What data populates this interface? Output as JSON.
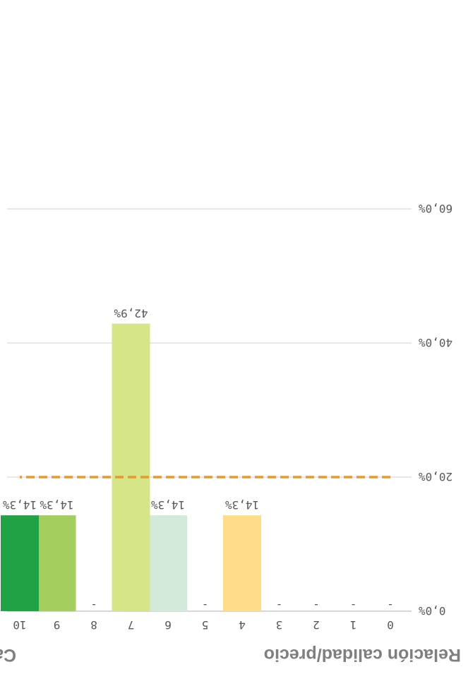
{
  "chart_data": {
    "type": "bar",
    "title": "Calificaciones en tiem",
    "xlabel": "Relación calidad/precio",
    "ylabel": "",
    "categories": [
      "0",
      "1",
      "2",
      "3",
      "4",
      "5",
      "6",
      "7",
      "8",
      "9",
      "10"
    ],
    "values": [
      0,
      0,
      0,
      0,
      14.3,
      0,
      14.3,
      42.9,
      0,
      14.3,
      14.3
    ],
    "data_labels": [
      "-",
      "-",
      "-",
      "-",
      "14,3%",
      "-",
      "14,3%",
      "42,9%",
      "-",
      "14,3%",
      "14,3%"
    ],
    "colors": [
      "#f0a830",
      "#f0a830",
      "#f0a830",
      "#f0a830",
      "#ffdd88",
      "#f0a830",
      "#d3eadb",
      "#d7e589",
      "#f0a830",
      "#a4cf5f",
      "#21a245"
    ],
    "ylim": [
      0,
      60
    ],
    "yticks": [
      0,
      20,
      40,
      60
    ],
    "ytick_labels": [
      "0,0%",
      "20,0%",
      "40,0%",
      "60,0%"
    ],
    "reference_line": {
      "value": 20,
      "color": "#e69a2e",
      "style": "dashed"
    },
    "grid": true,
    "orientation": "rotated-180"
  }
}
